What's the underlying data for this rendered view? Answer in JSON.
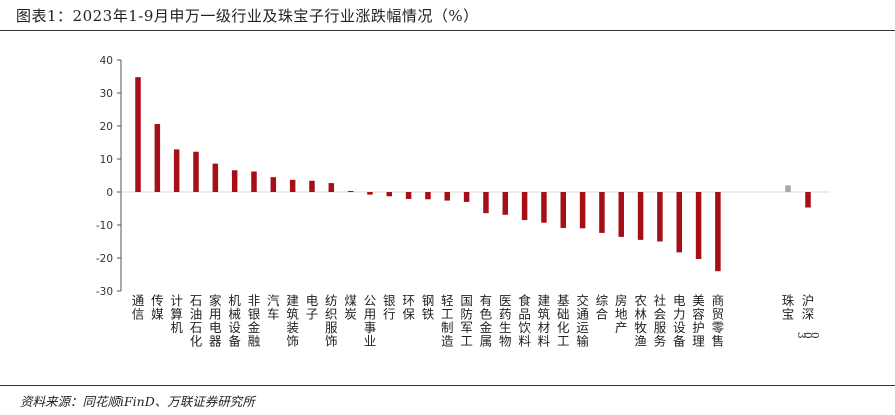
{
  "header": {
    "title": "图表1：2023年1-9月申万一级行业及珠宝子行业涨跌幅情况（%）"
  },
  "footer": {
    "source": "资料来源：同花顺iFinD、万联证券研究所"
  },
  "chart_data": {
    "type": "bar",
    "title": "",
    "xlabel": "",
    "ylabel": "",
    "ylim": [
      -30,
      40
    ],
    "yticks": [
      40,
      30,
      20,
      10,
      0,
      -10,
      -20,
      -30
    ],
    "grid": false,
    "legend": "none",
    "colors": {
      "industry": "#a50f15",
      "jewelry": "#a6a6a6"
    },
    "categories": [
      "通信",
      "传媒",
      "计算机",
      "石油石化",
      "家用电器",
      "机械设备",
      "非银金融",
      "汽车",
      "建筑装饰",
      "电子",
      "纺织服饰",
      "煤炭",
      "公用事业",
      "银行",
      "环保",
      "钢铁",
      "轻工制造",
      "国防军工",
      "有色金属",
      "医药生物",
      "食品饮料",
      "建筑材料",
      "基础化工",
      "交通运输",
      "综合",
      "房地产",
      "农林牧渔",
      "社会服务",
      "电力设备",
      "美容护理",
      "商贸零售",
      "珠宝",
      "沪深300"
    ],
    "values": [
      34.8,
      20.6,
      12.9,
      12.2,
      8.6,
      6.6,
      6.2,
      4.5,
      3.7,
      3.4,
      2.7,
      0.3,
      -0.8,
      -1.3,
      -2.1,
      -2.2,
      -2.6,
      -3.0,
      -6.4,
      -6.9,
      -8.5,
      -9.3,
      -10.9,
      -11.0,
      -12.4,
      -13.6,
      -14.5,
      -15.0,
      -18.3,
      -20.3,
      -24.0,
      2.0,
      -4.7
    ],
    "groups": [
      "industry",
      "industry",
      "industry",
      "industry",
      "industry",
      "industry",
      "industry",
      "industry",
      "industry",
      "industry",
      "industry",
      "industry",
      "industry",
      "industry",
      "industry",
      "industry",
      "industry",
      "industry",
      "industry",
      "industry",
      "industry",
      "industry",
      "industry",
      "industry",
      "industry",
      "industry",
      "industry",
      "industry",
      "industry",
      "industry",
      "industry",
      "jewelry",
      "industry"
    ]
  }
}
